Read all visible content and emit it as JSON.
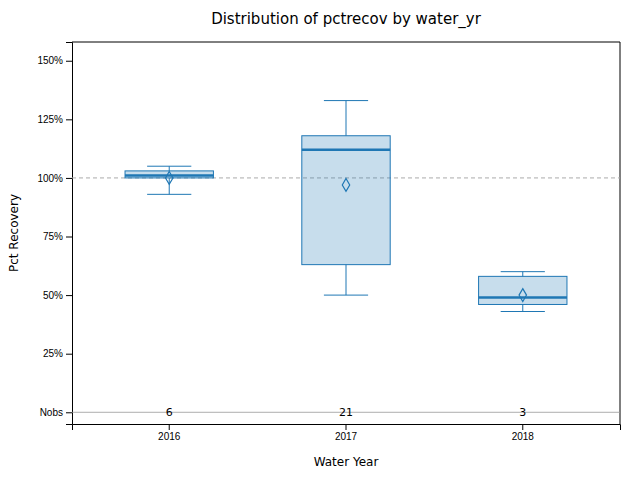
{
  "chart_data": {
    "type": "box",
    "title": "Distribution of pctrecov by water_yr",
    "xlabel": "Water Year",
    "ylabel": "Pct Recovery",
    "categories": [
      "2016",
      "2017",
      "2018"
    ],
    "boxes": [
      {
        "whislo": 93,
        "q1": 100,
        "med": 101,
        "q3": 103,
        "whishi": 105,
        "mean": 100
      },
      {
        "whislo": 50,
        "q1": 63,
        "med": 112,
        "q3": 118,
        "whishi": 133,
        "mean": 97
      },
      {
        "whislo": 43,
        "q1": 46,
        "med": 49,
        "q3": 58,
        "whishi": 60,
        "mean": 50
      }
    ],
    "nobs": [
      6,
      21,
      3
    ],
    "reference_line": 100,
    "ylim": [
      -5,
      158
    ],
    "yticks": [
      {
        "value": 0,
        "label": "Nobs"
      },
      {
        "value": 25,
        "label": "25%"
      },
      {
        "value": 50,
        "label": "50%"
      },
      {
        "value": 75,
        "label": "75%"
      },
      {
        "value": 100,
        "label": "100%"
      },
      {
        "value": 125,
        "label": "125%"
      },
      {
        "value": 150,
        "label": "150%"
      }
    ],
    "grid": false
  }
}
